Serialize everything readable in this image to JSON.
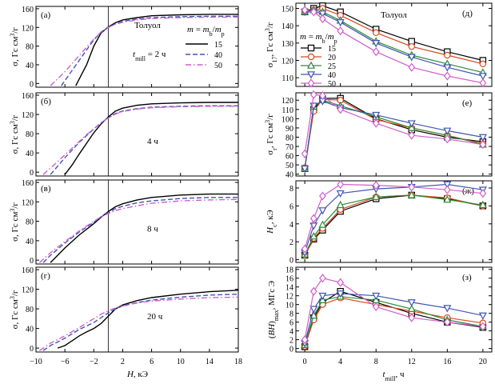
{
  "colors": {
    "m15": "#000000",
    "m20": "#d94a1e",
    "m25": "#2e8b3a",
    "m40": "#4056b0",
    "m50": "#d05ec8"
  },
  "left": {
    "xlabel": "H, кЭ",
    "xticks": [
      "−10",
      "−6",
      "−2",
      "2",
      "6",
      "10",
      "14",
      "18"
    ],
    "xlim": [
      -10,
      18
    ],
    "ylim": [
      -8,
      165
    ],
    "yticks": [
      "0",
      "40",
      "80",
      "120",
      "160"
    ],
    "ylabel": "σ, Гс см³/г",
    "legend_title": "m = mb/mp",
    "legend": [
      "15",
      "40",
      "50"
    ],
    "panels": [
      {
        "letter": "(а)",
        "note_top": "Толуол",
        "note": "tmill = 2 ч"
      },
      {
        "letter": "(б)",
        "note": "4 ч"
      },
      {
        "letter": "(в)",
        "note": "8 ч"
      },
      {
        "letter": "(г)",
        "note": "20 ч"
      }
    ]
  },
  "right": {
    "xlabel": "tmill, ч",
    "xticks": [
      "0",
      "4",
      "8",
      "12",
      "16",
      "20"
    ],
    "title": "Толуол",
    "legend_title": "m = mb/mp",
    "legend": [
      "15",
      "20",
      "25",
      "40",
      "50"
    ],
    "panels": [
      {
        "letter": "(д)",
        "ylabel": "σ17, Гс см³/г",
        "yticks": [
          "110",
          "120",
          "130",
          "140",
          "150"
        ]
      },
      {
        "letter": "(е)",
        "ylabel": "σr, Гс см³/г",
        "yticks": [
          "40",
          "50",
          "60",
          "70",
          "80",
          "90",
          "100",
          "110",
          "120"
        ]
      },
      {
        "letter": "(ж)",
        "ylabel": "Hc, кЭ",
        "yticks": [
          "0",
          "2",
          "4",
          "6",
          "8"
        ]
      },
      {
        "letter": "(з)",
        "ylabel": "(BH)max, МГс Э",
        "yticks": [
          "0",
          "2",
          "4",
          "6",
          "8",
          "10",
          "12",
          "14",
          "16",
          "18"
        ]
      }
    ]
  },
  "chart_data": [
    {
      "type": "line",
      "panel": "(а)",
      "xlabel": "H, кЭ",
      "ylabel": "σ, Гс см³/г",
      "xlim": [
        -10,
        18
      ],
      "ylim": [
        -8,
        165
      ],
      "series": [
        {
          "name": "15",
          "style": "solid",
          "x": [
            -4.5,
            -3,
            -2,
            -1,
            0,
            1,
            2,
            4,
            6,
            10,
            14,
            18
          ],
          "y": [
            -5,
            40,
            80,
            108,
            121,
            130,
            136,
            141,
            145,
            147,
            148,
            148
          ]
        },
        {
          "name": "40",
          "style": "dashed",
          "x": [
            -6.5,
            -5,
            -3,
            -2,
            -1,
            0,
            1,
            2,
            4,
            6,
            10,
            14,
            18
          ],
          "y": [
            -5,
            28,
            72,
            93,
            110,
            120,
            128,
            133,
            138,
            141,
            143,
            144,
            144
          ]
        },
        {
          "name": "50",
          "style": "dashdot",
          "x": [
            -8,
            -6,
            -4,
            -2,
            -1,
            0,
            1,
            2,
            4,
            6,
            10,
            14,
            18
          ],
          "y": [
            -5,
            25,
            60,
            95,
            110,
            120,
            127,
            131,
            136,
            139,
            141,
            142,
            142
          ]
        }
      ]
    },
    {
      "type": "line",
      "panel": "(б)",
      "xlabel": "H, кЭ",
      "ylabel": "σ, Гс см³/г",
      "xlim": [
        -10,
        18
      ],
      "ylim": [
        -8,
        165
      ],
      "series": [
        {
          "name": "15",
          "style": "solid",
          "x": [
            -6,
            -5,
            -4,
            -3,
            -2,
            -1,
            0,
            1,
            2,
            4,
            6,
            10,
            14,
            18
          ],
          "y": [
            -5,
            15,
            38,
            60,
            82,
            100,
            115,
            127,
            133,
            139,
            142,
            144,
            145,
            145
          ]
        },
        {
          "name": "40",
          "style": "dashed",
          "x": [
            -8,
            -6,
            -4,
            -2,
            -1,
            0,
            1,
            2,
            4,
            6,
            10,
            14,
            18
          ],
          "y": [
            -5,
            30,
            62,
            90,
            102,
            113,
            122,
            127,
            132,
            135,
            137,
            138,
            138
          ]
        },
        {
          "name": "50",
          "style": "dashdot",
          "x": [
            -9,
            -7,
            -5,
            -3,
            -2,
            -1,
            0,
            1,
            2,
            4,
            6,
            10,
            14,
            18
          ],
          "y": [
            -5,
            22,
            50,
            78,
            90,
            103,
            113,
            121,
            126,
            131,
            134,
            136,
            137,
            137
          ]
        }
      ]
    },
    {
      "type": "line",
      "panel": "(в)",
      "xlabel": "H, кЭ",
      "ylabel": "σ, Гс см³/г",
      "xlim": [
        -10,
        18
      ],
      "ylim": [
        -8,
        165
      ],
      "series": [
        {
          "name": "15",
          "style": "solid",
          "x": [
            -8,
            -7,
            -6,
            -4,
            -2,
            -1,
            0,
            1,
            2,
            4,
            6,
            10,
            14,
            18
          ],
          "y": [
            -5,
            10,
            25,
            52,
            75,
            88,
            100,
            110,
            116,
            124,
            129,
            134,
            136,
            136
          ]
        },
        {
          "name": "40",
          "style": "dashed",
          "x": [
            -9,
            -8,
            -6,
            -4,
            -2,
            -1,
            0,
            1,
            2,
            4,
            6,
            10,
            14,
            18
          ],
          "y": [
            -5,
            10,
            35,
            58,
            78,
            89,
            98,
            106,
            111,
            118,
            122,
            127,
            129,
            129
          ]
        },
        {
          "name": "50",
          "style": "dashdot",
          "x": [
            -9.5,
            -8,
            -6,
            -4,
            -2,
            -1,
            0,
            1,
            2,
            4,
            6,
            10,
            14,
            18
          ],
          "y": [
            -5,
            15,
            38,
            60,
            80,
            89,
            96,
            102,
            106,
            112,
            117,
            122,
            124,
            125
          ]
        }
      ]
    },
    {
      "type": "line",
      "panel": "(г)",
      "xlabel": "H, кЭ",
      "ylabel": "σ, Гс см³/г",
      "xlim": [
        -10,
        18
      ],
      "ylim": [
        -8,
        165
      ],
      "series": [
        {
          "name": "15",
          "style": "solid",
          "x": [
            -7,
            -6,
            -5,
            -4,
            -3,
            -2,
            -1,
            0,
            1,
            2,
            4,
            6,
            10,
            14,
            18
          ],
          "y": [
            0,
            5,
            15,
            25,
            33,
            40,
            50,
            65,
            80,
            88,
            97,
            103,
            110,
            115,
            118
          ]
        },
        {
          "name": "40",
          "style": "dashed",
          "x": [
            -9,
            -8,
            -6,
            -4,
            -2,
            -1,
            0,
            1,
            2,
            4,
            6,
            10,
            14,
            18
          ],
          "y": [
            -5,
            5,
            20,
            38,
            52,
            62,
            72,
            80,
            86,
            93,
            98,
            104,
            108,
            110
          ]
        },
        {
          "name": "50",
          "style": "dashdot",
          "x": [
            -9.5,
            -8,
            -6,
            -4,
            -2,
            -1,
            0,
            1,
            2,
            4,
            6,
            10,
            14,
            18
          ],
          "y": [
            -5,
            10,
            25,
            42,
            60,
            69,
            76,
            82,
            86,
            92,
            96,
            100,
            103,
            104
          ]
        }
      ]
    },
    {
      "type": "line",
      "panel": "(д)",
      "xlabel": "tmill, ч",
      "ylabel": "σ17, Гс см³/г",
      "xlim": [
        -1,
        21
      ],
      "ylim": [
        105,
        153
      ],
      "x": [
        0,
        1,
        2,
        4,
        8,
        12,
        16,
        20
      ],
      "series": [
        {
          "name": "15",
          "marker": "square",
          "values": [
            148,
            150,
            151.5,
            148,
            138,
            131,
            125,
            120
          ]
        },
        {
          "name": "20",
          "marker": "circle",
          "values": [
            148,
            149,
            150,
            146,
            136,
            128,
            123,
            118
          ]
        },
        {
          "name": "25",
          "marker": "triangle-up",
          "values": [
            148,
            149,
            148,
            143,
            131,
            123,
            118,
            113
          ]
        },
        {
          "name": "40",
          "marker": "triangle-down",
          "values": [
            148,
            148,
            147,
            142,
            130,
            122,
            116,
            111
          ]
        },
        {
          "name": "50",
          "marker": "diamond",
          "values": [
            149,
            148,
            144,
            137,
            125,
            116,
            111,
            107
          ]
        }
      ]
    },
    {
      "type": "line",
      "panel": "(е)",
      "xlabel": "tmill, ч",
      "ylabel": "σr, Гс см³/г",
      "xlim": [
        -1,
        21
      ],
      "ylim": [
        38,
        128
      ],
      "x": [
        0,
        1,
        2,
        4,
        8,
        12,
        16,
        20
      ],
      "series": [
        {
          "name": "15",
          "marker": "square",
          "values": [
            46,
            110,
            122,
            122,
            100,
            88,
            80,
            75
          ]
        },
        {
          "name": "20",
          "marker": "circle",
          "values": [
            47,
            108,
            121,
            120,
            99,
            90,
            82,
            73
          ]
        },
        {
          "name": "25",
          "marker": "triangle-up",
          "values": [
            46,
            113,
            120,
            114,
            102,
            90,
            82,
            72
          ]
        },
        {
          "name": "40",
          "marker": "triangle-down",
          "values": [
            46,
            114,
            119,
            112,
            104,
            95,
            87,
            80
          ]
        },
        {
          "name": "50",
          "marker": "diamond",
          "values": [
            62,
            126,
            125,
            110,
            95,
            82,
            78,
            72
          ]
        }
      ]
    },
    {
      "type": "line",
      "panel": "(ж)",
      "xlabel": "tmill, ч",
      "ylabel": "Hc, кЭ",
      "xlim": [
        -1,
        21
      ],
      "ylim": [
        -0.3,
        8.8
      ],
      "x": [
        0,
        1,
        2,
        4,
        8,
        12,
        16,
        20
      ],
      "series": [
        {
          "name": "15",
          "marker": "square",
          "values": [
            0.5,
            2.3,
            3.3,
            5.4,
            6.8,
            7.2,
            6.8,
            6.0
          ]
        },
        {
          "name": "20",
          "marker": "circle",
          "values": [
            0.5,
            2.4,
            3.5,
            5.6,
            7.0,
            7.2,
            6.9,
            6.0
          ]
        },
        {
          "name": "25",
          "marker": "triangle-up",
          "values": [
            0.6,
            2.6,
            3.9,
            6.1,
            7.0,
            7.2,
            6.7,
            6.1
          ]
        },
        {
          "name": "40",
          "marker": "triangle-down",
          "values": [
            0.8,
            3.8,
            5.5,
            7.4,
            7.9,
            8.1,
            8.4,
            7.8
          ]
        },
        {
          "name": "50",
          "marker": "diamond",
          "values": [
            1.2,
            4.6,
            7.1,
            8.4,
            8.3,
            8.1,
            7.8,
            7.4
          ]
        }
      ]
    },
    {
      "type": "line",
      "panel": "(з)",
      "xlabel": "tmill, ч",
      "ylabel": "(BH)max, МГс Э",
      "xlim": [
        -1,
        21
      ],
      "ylim": [
        -0.8,
        18.5
      ],
      "x": [
        0,
        1,
        2,
        4,
        8,
        12,
        16,
        20
      ],
      "series": [
        {
          "name": "15",
          "marker": "square",
          "values": [
            0.4,
            7.0,
            10.5,
            13.0,
            10.5,
            8.0,
            6.0,
            4.8
          ]
        },
        {
          "name": "20",
          "marker": "circle",
          "values": [
            0.5,
            6.5,
            10.0,
            11.5,
            10.0,
            8.5,
            7.0,
            5.8
          ]
        },
        {
          "name": "25",
          "marker": "triangle-up",
          "values": [
            0.8,
            7.5,
            11.0,
            11.8,
            11.0,
            9.0,
            6.5,
            5.0
          ]
        },
        {
          "name": "40",
          "marker": "triangle-down",
          "values": [
            1.2,
            9.0,
            12.0,
            12.5,
            12.0,
            10.5,
            9.2,
            7.5
          ]
        },
        {
          "name": "50",
          "marker": "diamond",
          "values": [
            2.0,
            13.0,
            16.0,
            15.0,
            9.5,
            7.0,
            6.0,
            5.0
          ]
        }
      ]
    }
  ]
}
